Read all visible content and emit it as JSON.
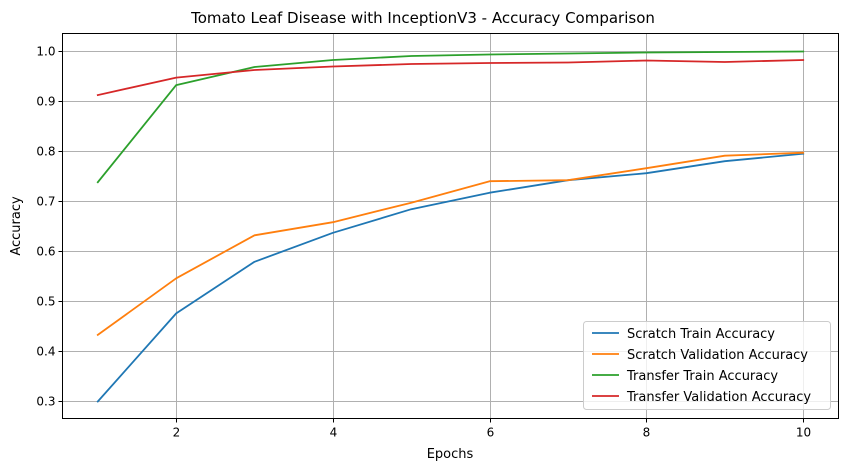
{
  "chart_data": {
    "type": "line",
    "title": "Tomato Leaf Disease with InceptionV3 - Accuracy Comparison",
    "xlabel": "Epochs",
    "ylabel": "Accuracy",
    "x": [
      1,
      2,
      3,
      4,
      5,
      6,
      7,
      8,
      9,
      10
    ],
    "xlim": [
      0.55,
      10.45
    ],
    "ylim": [
      0.265,
      1.034
    ],
    "xticks": [
      2,
      4,
      6,
      8,
      10
    ],
    "yticks": [
      0.3,
      0.4,
      0.5,
      0.6,
      0.7,
      0.8,
      0.9,
      1.0
    ],
    "xtick_labels": [
      "2",
      "4",
      "6",
      "8",
      "10"
    ],
    "ytick_labels": [
      "0.3",
      "0.4",
      "0.5",
      "0.6",
      "0.7",
      "0.8",
      "0.9",
      "1.0"
    ],
    "grid": true,
    "legend_position": "lower-right",
    "series": [
      {
        "name": "Scratch Train Accuracy",
        "color": "#1f77b4",
        "values": [
          0.299,
          0.475,
          0.578,
          0.636,
          0.683,
          0.716,
          0.741,
          0.755,
          0.779,
          0.794
        ]
      },
      {
        "name": "Scratch Validation Accuracy",
        "color": "#ff7f0e",
        "values": [
          0.432,
          0.545,
          0.631,
          0.657,
          0.696,
          0.739,
          0.741,
          0.765,
          0.79,
          0.796
        ]
      },
      {
        "name": "Transfer Train Accuracy",
        "color": "#2ca02c",
        "values": [
          0.737,
          0.931,
          0.967,
          0.981,
          0.989,
          0.992,
          0.994,
          0.996,
          0.997,
          0.998
        ]
      },
      {
        "name": "Transfer Validation Accuracy",
        "color": "#d62728",
        "values": [
          0.911,
          0.946,
          0.961,
          0.968,
          0.973,
          0.975,
          0.976,
          0.98,
          0.977,
          0.981
        ]
      }
    ]
  }
}
